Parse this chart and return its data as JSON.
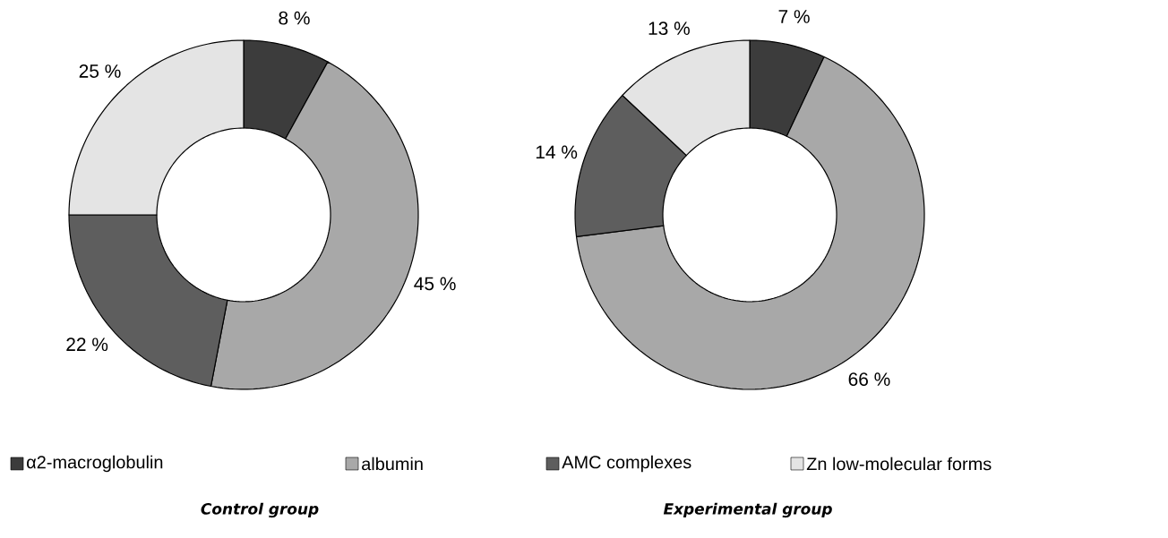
{
  "chart_data": [
    {
      "type": "donut",
      "title": "Control group",
      "categories": [
        "α2-macroglobulin",
        "albumin",
        "AMC complexes",
        "Zn low-molecular forms"
      ],
      "values": [
        8,
        45,
        22,
        25
      ],
      "value_labels": [
        "8 %",
        "45 %",
        "22 %",
        "25 %"
      ],
      "colors": [
        "#3c3c3c",
        "#a8a8a8",
        "#5e5e5e",
        "#e4e4e4"
      ],
      "legend": "bottom"
    },
    {
      "type": "donut",
      "title": "Experimental group",
      "categories": [
        null,
        null,
        null,
        null
      ],
      "values": [
        7,
        66,
        14,
        13
      ],
      "value_labels": [
        "7 %",
        "66 %",
        "14 %",
        "13 %"
      ],
      "colors": [
        "#3c3c3c",
        "#a8a8a8",
        "#5e5e5e",
        "#e4e4e4"
      ]
    }
  ]
}
